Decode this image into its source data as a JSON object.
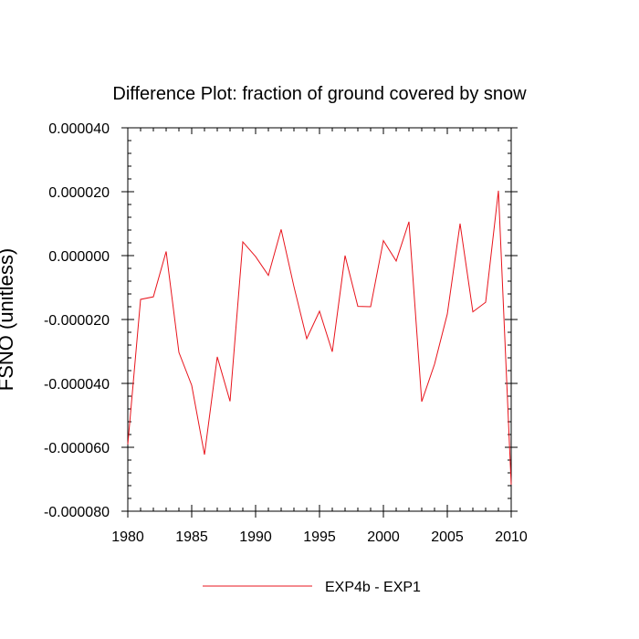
{
  "chart_data": {
    "type": "line",
    "title": "Difference Plot: fraction of ground covered by snow",
    "xlabel": "",
    "ylabel": "FSNO  (unitless)",
    "xlim": [
      1980,
      2010
    ],
    "ylim": [
      -8e-05,
      4e-05
    ],
    "x_ticks": [
      "1980",
      "1985",
      "1990",
      "1995",
      "2000",
      "2005",
      "2010"
    ],
    "y_ticks": [
      "0.000040",
      "0.000020",
      "0.000000",
      "-0.000020",
      "-0.000040",
      "-0.000060",
      "-0.000080"
    ],
    "legend_position": "bottom-center",
    "grid": false,
    "series": [
      {
        "name": "EXP4b - EXP1",
        "color": "#e8141c",
        "x": [
          1980,
          1981,
          1982,
          1983,
          1984,
          1985,
          1986,
          1987,
          1988,
          1989,
          1990,
          1991,
          1992,
          1993,
          1994,
          1995,
          1996,
          1997,
          1998,
          1999,
          2000,
          2001,
          2002,
          2003,
          2004,
          2005,
          2006,
          2007,
          2008,
          2009,
          2010
        ],
        "y": [
          -5.91e-05,
          -1.37e-05,
          -1.29e-05,
          1.3e-06,
          -3.03e-05,
          -4.06e-05,
          -6.23e-05,
          -3.17e-05,
          -4.56e-05,
          4.3e-06,
          -3e-07,
          -6.2e-06,
          8.2e-06,
          -9.7e-06,
          -2.6e-05,
          -1.74e-05,
          -3.01e-05,
          -0.0,
          -1.59e-05,
          -1.6e-05,
          4.7e-06,
          -1.7e-06,
          1.06e-05,
          -4.57e-05,
          -3.4e-05,
          -1.83e-05,
          1e-05,
          -1.76e-05,
          -1.46e-05,
          2.03e-05,
          -7.17e-05
        ]
      }
    ]
  }
}
